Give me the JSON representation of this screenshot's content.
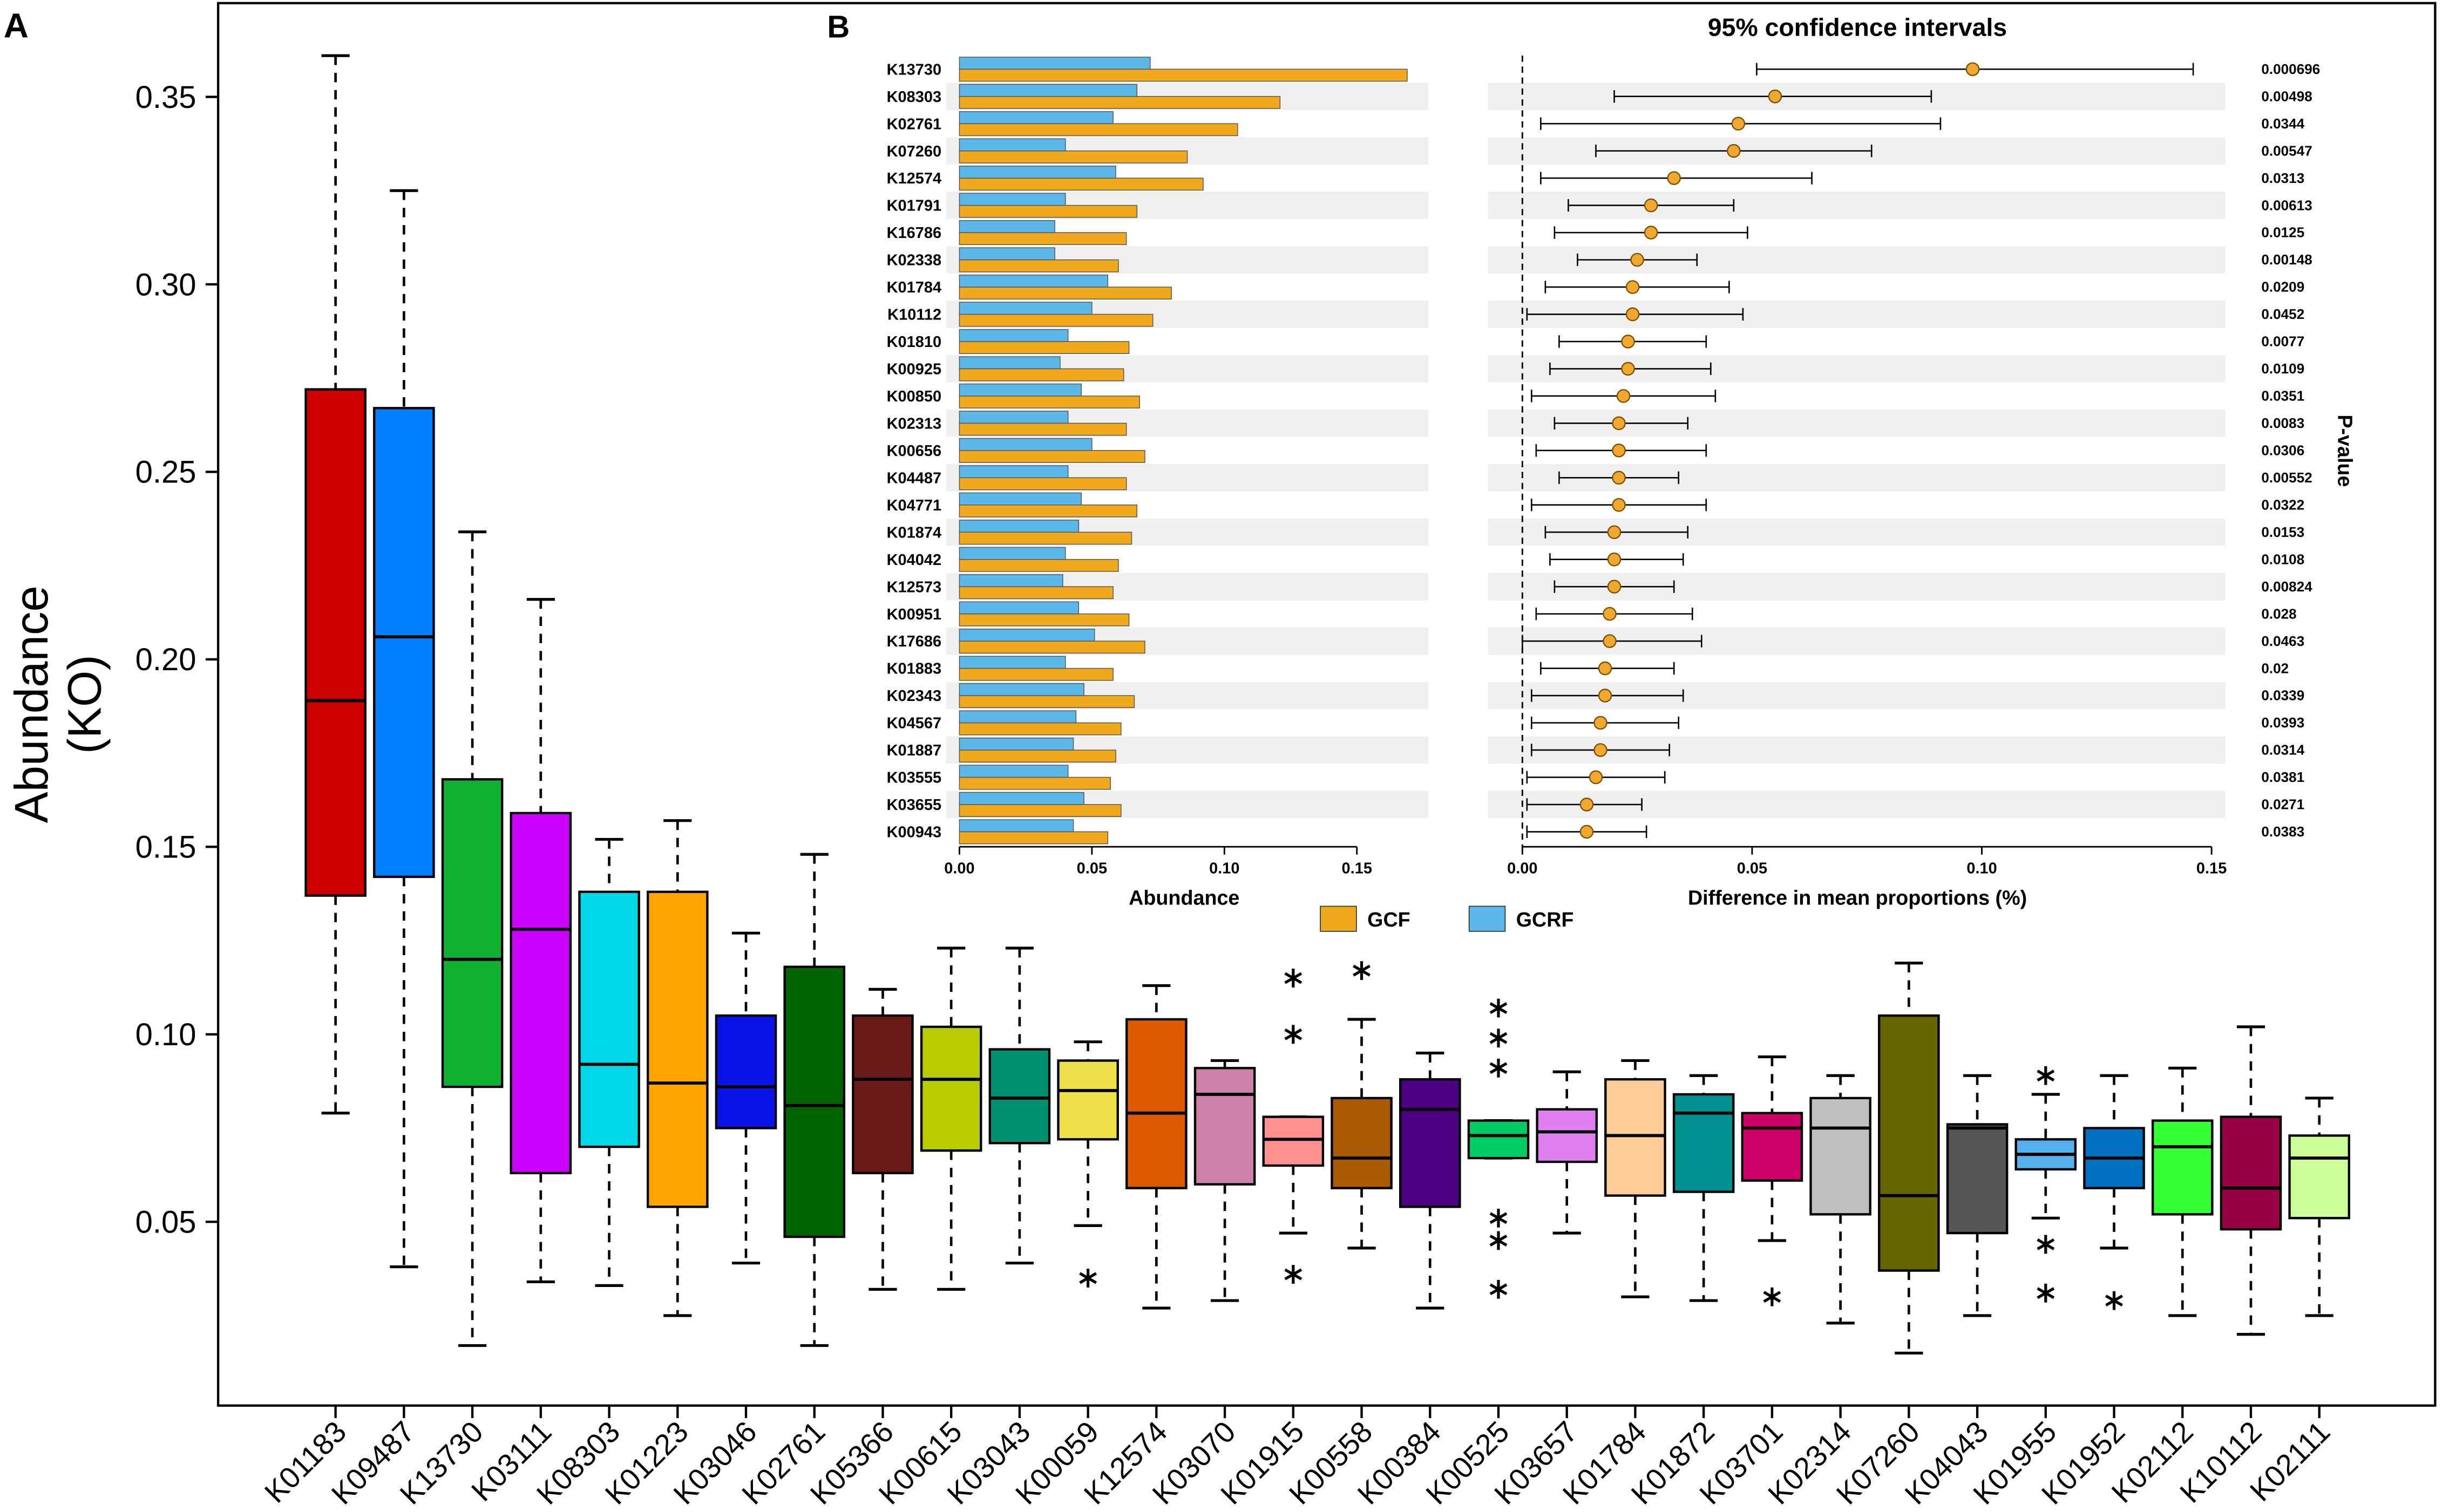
{
  "chart_data": [
    {
      "type": "box",
      "panel_label": "A",
      "y_label": [
        "Abundance",
        "(KO)"
      ],
      "ylim": [
        0.001,
        0.375
      ],
      "yticks": [
        0.05,
        {
          "value": 0.1,
          "label": "0.10"
        },
        0.15,
        {
          "value": 0.2,
          "label": "0.20"
        },
        0.25,
        {
          "value": 0.3,
          "label": "0.30"
        },
        0.35
      ],
      "categories": [
        "K01183",
        "K09487",
        "K13730",
        "K03111",
        "K08303",
        "K01223",
        "K03046",
        "K02761",
        "K05366",
        "K00615",
        "K03043",
        "K00059",
        "K12574",
        "K03070",
        "K01915",
        "K00558",
        "K00384",
        "K00525",
        "K03657",
        "K01784",
        "K01872",
        "K03701",
        "K02314",
        "K07260",
        "K04043",
        "K01955",
        "K01952",
        "K02112",
        "K10112",
        "K02111"
      ],
      "colors": [
        "#cc0000",
        "#0080ff",
        "#10b030",
        "#cc00ff",
        "#00d8e8",
        "#ffa500",
        "#0a14e8",
        "#006400",
        "#6b1a1a",
        "#b8cc00",
        "#009070",
        "#eee04a",
        "#dd5a00",
        "#cc80aa",
        "#ff9090",
        "#aa5a00",
        "#4b0082",
        "#00cc66",
        "#e080f0",
        "#ffcc99",
        "#009090",
        "#cc0066",
        "#c0c0c0",
        "#666600",
        "#555555",
        "#55b0ee",
        "#0070c0",
        "#33ff33",
        "#990044",
        "#ccff99"
      ],
      "whisker_low": [
        0.079,
        0.038,
        0.017,
        0.034,
        0.033,
        0.025,
        0.039,
        0.017,
        0.032,
        0.032,
        0.039,
        0.049,
        0.027,
        0.029,
        0.047,
        0.043,
        0.027,
        0.067,
        0.047,
        0.03,
        0.029,
        0.045,
        0.023,
        0.015,
        0.025,
        0.051,
        0.043,
        0.025,
        0.02,
        0.025
      ],
      "q1": [
        0.137,
        0.142,
        0.086,
        0.063,
        0.07,
        0.054,
        0.075,
        0.046,
        0.063,
        0.069,
        0.071,
        0.072,
        0.059,
        0.06,
        0.065,
        0.059,
        0.054,
        0.067,
        0.066,
        0.057,
        0.058,
        0.061,
        0.052,
        0.037,
        0.047,
        0.064,
        0.059,
        0.052,
        0.048,
        0.051
      ],
      "median": [
        0.189,
        0.206,
        0.12,
        0.128,
        0.092,
        0.087,
        0.086,
        0.081,
        0.088,
        0.088,
        0.083,
        0.085,
        0.079,
        0.084,
        0.072,
        0.067,
        0.08,
        0.073,
        0.074,
        0.073,
        0.079,
        0.075,
        0.075,
        0.057,
        0.075,
        0.068,
        0.067,
        0.07,
        0.059,
        0.067
      ],
      "q3": [
        0.272,
        0.267,
        0.168,
        0.159,
        0.138,
        0.138,
        0.105,
        0.118,
        0.105,
        0.102,
        0.096,
        0.093,
        0.104,
        0.091,
        0.078,
        0.083,
        0.088,
        0.077,
        0.08,
        0.088,
        0.084,
        0.079,
        0.083,
        0.105,
        0.076,
        0.072,
        0.075,
        0.077,
        0.078,
        0.073
      ],
      "whisker_high": [
        0.361,
        0.325,
        0.234,
        0.216,
        0.152,
        0.157,
        0.127,
        0.148,
        0.112,
        0.123,
        0.123,
        0.098,
        0.113,
        0.093,
        0.078,
        0.104,
        0.095,
        0.077,
        0.09,
        0.093,
        0.089,
        0.094,
        0.089,
        0.119,
        0.089,
        0.084,
        0.089,
        0.091,
        0.102,
        0.083
      ],
      "outliers": [
        [],
        [],
        [],
        [],
        [],
        [],
        [],
        [],
        [],
        [],
        [],
        [
          0.035
        ],
        [],
        [],
        [
          0.115,
          0.1,
          0.036
        ],
        [
          0.117
        ],
        [],
        [
          0.107,
          0.099,
          0.091,
          0.051,
          0.045,
          0.032
        ],
        [],
        [],
        [],
        [
          0.03
        ],
        [],
        [],
        [],
        [
          0.089,
          0.044,
          0.031
        ],
        [
          0.029
        ],
        [],
        [],
        []
      ]
    },
    {
      "type": "hbar",
      "panel_label": "B",
      "x_label": "Abundance",
      "xlim": [
        -0.005,
        0.177
      ],
      "xticks": [
        {
          "value": 0,
          "label": "0.00"
        },
        0.05,
        {
          "value": 0.1,
          "label": "0.10"
        },
        0.15
      ],
      "categories": [
        "K13730",
        "K08303",
        "K02761",
        "K07260",
        "K12574",
        "K01791",
        "K16786",
        "K02338",
        "K01784",
        "K10112",
        "K01810",
        "K00925",
        "K00850",
        "K02313",
        "K00656",
        "K04487",
        "K04771",
        "K01874",
        "K04042",
        "K12573",
        "K00951",
        "K17686",
        "K01883",
        "K02343",
        "K04567",
        "K01887",
        "K03555",
        "K03655",
        "K00943"
      ],
      "series": [
        {
          "name": "GCF",
          "color": "#f0a81c",
          "values": [
            0.169,
            0.121,
            0.105,
            0.086,
            0.092,
            0.067,
            0.063,
            0.06,
            0.08,
            0.073,
            0.064,
            0.062,
            0.068,
            0.063,
            0.07,
            0.063,
            0.067,
            0.065,
            0.06,
            0.058,
            0.064,
            0.07,
            0.058,
            0.066,
            0.061,
            0.059,
            0.057,
            0.061,
            0.056
          ]
        },
        {
          "name": "GCRF",
          "color": "#5bb8e8",
          "values": [
            0.072,
            0.067,
            0.058,
            0.04,
            0.059,
            0.04,
            0.036,
            0.036,
            0.056,
            0.05,
            0.041,
            0.038,
            0.046,
            0.041,
            0.05,
            0.041,
            0.046,
            0.045,
            0.04,
            0.039,
            0.045,
            0.051,
            0.04,
            0.047,
            0.044,
            0.043,
            0.041,
            0.047,
            0.043
          ]
        }
      ]
    },
    {
      "type": "ci",
      "title": "95% confidence intervals",
      "x_label": "Difference in mean proportions (%)",
      "p_label": "P-value",
      "xlim": [
        -0.0075,
        0.153
      ],
      "xticks": [
        {
          "value": 0,
          "label": "0.00"
        },
        0.05,
        {
          "value": 0.1,
          "label": "0.10"
        },
        0.15
      ],
      "diff": [
        0.098,
        0.055,
        0.047,
        0.046,
        0.033,
        0.028,
        0.028,
        0.025,
        0.024,
        0.024,
        0.023,
        0.023,
        0.022,
        0.021,
        0.021,
        0.021,
        0.021,
        0.02,
        0.02,
        0.02,
        0.019,
        0.019,
        0.018,
        0.018,
        0.017,
        0.017,
        0.016,
        0.014,
        0.014
      ],
      "low": [
        0.051,
        0.02,
        0.004,
        0.016,
        0.004,
        0.01,
        0.007,
        0.012,
        0.005,
        0.001,
        0.008,
        0.006,
        0.002,
        0.007,
        0.003,
        0.008,
        0.002,
        0.005,
        0.006,
        0.007,
        0.003,
        0.0,
        0.004,
        0.002,
        0.002,
        0.002,
        0.001,
        0.001,
        0.001
      ],
      "high": [
        0.146,
        0.089,
        0.091,
        0.076,
        0.063,
        0.046,
        0.049,
        0.038,
        0.045,
        0.048,
        0.04,
        0.041,
        0.042,
        0.036,
        0.04,
        0.034,
        0.04,
        0.036,
        0.035,
        0.033,
        0.037,
        0.039,
        0.033,
        0.035,
        0.034,
        0.032,
        0.031,
        0.026,
        0.027
      ],
      "p_values": [
        0.000696,
        0.00498,
        0.0344,
        0.00547,
        0.0313,
        0.00613,
        0.0125,
        0.00148,
        0.0209,
        0.0452,
        0.0077,
        0.0109,
        0.0351,
        0.0083,
        0.0306,
        0.00552,
        0.0322,
        0.0153,
        0.0108,
        0.00824,
        0.028,
        0.0463,
        0.02,
        0.0339,
        0.0393,
        0.0314,
        0.0381,
        0.0271,
        0.0383
      ]
    }
  ]
}
